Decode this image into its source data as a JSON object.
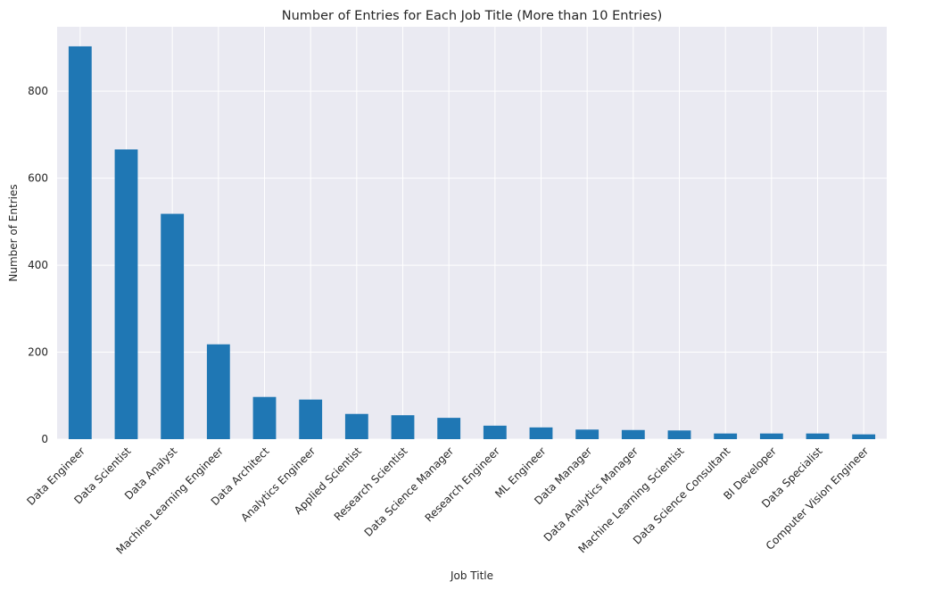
{
  "chart_data": {
    "type": "bar",
    "title": "Number of Entries for Each Job Title (More than 10 Entries)",
    "xlabel": "Job Title",
    "ylabel": "Number of Entries",
    "categories": [
      "Data Engineer",
      "Data Scientist",
      "Data Analyst",
      "Machine Learning Engineer",
      "Data Architect",
      "Analytics Engineer",
      "Applied Scientist",
      "Research Scientist",
      "Data Science Manager",
      "Research Engineer",
      "ML Engineer",
      "Data Manager",
      "Data Analytics Manager",
      "Machine Learning Scientist",
      "Data Science Consultant",
      "BI Developer",
      "Data Specialist",
      "Computer Vision Engineer"
    ],
    "values": [
      903,
      666,
      518,
      218,
      97,
      91,
      58,
      55,
      49,
      31,
      27,
      22,
      21,
      20,
      13,
      13,
      13,
      11
    ],
    "yticks": [
      0,
      200,
      400,
      600,
      800
    ],
    "ylim": [
      0,
      948
    ],
    "grid": true,
    "legend": "none",
    "colors": {
      "bar": "#1f77b4",
      "plot_background": "#eaeaf2",
      "grid": "#ffffff",
      "text": "#262626"
    }
  }
}
